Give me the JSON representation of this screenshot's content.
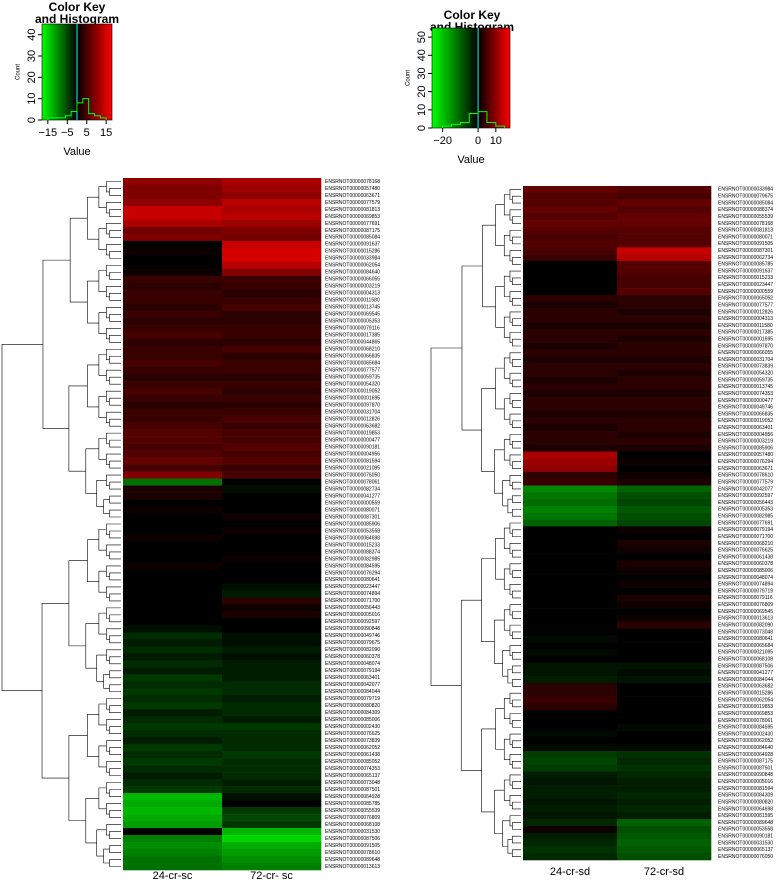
{
  "chart_data": [
    {
      "type": "heatmap",
      "key_title_lines": [
        "Color Key",
        "and Histogram"
      ],
      "key_xlabel": "Value",
      "key_ylabel": "Count",
      "key_xlim": [
        -18,
        18
      ],
      "key_xticks": [
        {
          "value": -15,
          "label": "−15"
        },
        {
          "value": -5,
          "label": "−5"
        },
        5,
        15
      ],
      "key_ylim": [
        0,
        45
      ],
      "key_yticks": [
        0,
        10,
        20,
        30,
        40
      ],
      "histogram": {
        "bins": [
          -15,
          -12,
          -9,
          -6,
          -3,
          0,
          3,
          6,
          9,
          12,
          15
        ],
        "counts": [
          1,
          1,
          1,
          2,
          4,
          8,
          10,
          3,
          2,
          1
        ],
        "color": "#00ff00"
      },
      "colors": {
        "low": "#00ff00",
        "mid": "#000000",
        "high": "#ff0000"
      },
      "columns": [
        "24-cr-sc",
        "72-cr- sc"
      ],
      "rows": [
        "ENSRNOT00000078168",
        "ENSRNOT00000057480",
        "ENSRNOT00000063671",
        "ENSRNOT00000077579",
        "ENSRNOT00000081813",
        "ENSRNOT00000069853",
        "ENSRNOT00000077691",
        "ENSRNOT00000087175",
        "ENSRNOT00000085084",
        "ENSRNOT00000091637",
        "ENSRNOT00000015286",
        "ENSRNOT00000033984",
        "ENSRNOT00000062054",
        "ENSRNOT00000084640",
        "ENSRNOT00000066055",
        "ENSRNOT00000003219",
        "ENSRNOT00000004313",
        "ENSRNOT00000011580",
        "ENSRNOT00000013745",
        "ENSRNOT00000069545",
        "ENSRNOT00000005353",
        "ENSRNOT00000079116",
        "ENSRNOT00000017385",
        "ENSRNOT00000044865",
        "ENSRNOT00000068210",
        "ENSRNOT00000066835",
        "ENSRNOT00000065684",
        "ENSRNOT00000077577",
        "ENSRNOT00000059735",
        "ENSRNOT00000054320",
        "ENSRNOT00000019052",
        "ENSRNOT00000001695",
        "ENSRNOT00000097870",
        "ENSRNOT00000031704",
        "ENSRNOT00000012826",
        "ENSRNOT00000063682",
        "ENSRNOT00000019853",
        "ENSRNOT00000000477",
        "ENSRNOT00000090181",
        "ENSRNOT00000004956",
        "ENSRNOT00000081594",
        "ENSRNOT00000021095",
        "ENSRNOT00000076050",
        "ENSRNOT00000078061",
        "ENSRNOT00000082734",
        "ENSRNOT00000041277",
        "ENSRNOT00000000559",
        "ENSRNOT00000080071",
        "ENSRNOT00000087301",
        "ENSRNOT00000085906",
        "ENSRNOT00000053558",
        "ENSRNOT00000064698",
        "ENSRNOT00000015233",
        "ENSRNOT00000088374",
        "ENSRNOT00000082985",
        "ENSRNOT00000084595",
        "ENSRNOT00000076294",
        "ENSRNOT00000080641",
        "ENSRNOT00000023447",
        "ENSRNOT00000074894",
        "ENSRNOT00000071700",
        "ENSRNOT00000056443",
        "ENSRNOT00000005016",
        "ENSRNOT00000092597",
        "ENSRNOT00000090848",
        "ENSRNOT00000049746",
        "ENSRNOT00000079675",
        "ENSRNOT00000082090",
        "ENSRNOT00000060378",
        "ENSRNOT00000048074",
        "ENSRNOT00000079194",
        "ENSRNOT00000063401",
        "ENSRNOT00000042077",
        "ENSRNOT00000084044",
        "ENSRNOT00000079719",
        "ENSRNOT00000080820",
        "ENSRNOT00000084309",
        "ENSRNOT00000085006",
        "ENSRNOT00000002430",
        "ENSRNOT00000076625",
        "ENSRNOT00000073839",
        "ENSRNOT00000062052",
        "ENSRNOT00000061438",
        "ENSRNOT00000085052",
        "ENSRNOT00000074353",
        "ENSRNOT00000065137",
        "ENSRNOT00000073048",
        "ENSRNOT00000087501",
        "ENSRNOT00000064928",
        "ENSRNOT00000085785",
        "ENSRNOT00000055539",
        "ENSRNOT00000076809",
        "ENSRNOT00000068108",
        "ENSRNOT00000031530",
        "ENSRNOT00000087506",
        "ENSRNOT00000091505",
        "ENSRNOT00000078610",
        "ENSRNOT00000089648",
        "ENSRNOT00000013613"
      ],
      "values": [
        [
          10,
          12
        ],
        [
          9,
          11
        ],
        [
          9,
          10
        ],
        [
          10,
          13
        ],
        [
          14,
          12
        ],
        [
          14,
          13
        ],
        [
          12,
          11
        ],
        [
          8,
          9
        ],
        [
          9,
          8
        ],
        [
          0,
          14
        ],
        [
          1,
          15
        ],
        [
          0,
          15
        ],
        [
          0,
          13
        ],
        [
          1,
          9
        ],
        [
          4,
          4
        ],
        [
          3,
          4
        ],
        [
          4,
          3
        ],
        [
          4,
          4
        ],
        [
          3,
          5
        ],
        [
          4,
          3
        ],
        [
          3,
          3
        ],
        [
          4,
          4
        ],
        [
          5,
          4
        ],
        [
          3,
          3
        ],
        [
          4,
          5
        ],
        [
          4,
          3
        ],
        [
          5,
          4
        ],
        [
          4,
          4
        ],
        [
          3,
          3
        ],
        [
          4,
          4
        ],
        [
          5,
          3
        ],
        [
          4,
          4
        ],
        [
          3,
          3
        ],
        [
          4,
          4
        ],
        [
          4,
          5
        ],
        [
          5,
          4
        ],
        [
          6,
          5
        ],
        [
          6,
          5
        ],
        [
          5,
          6
        ],
        [
          6,
          5
        ],
        [
          7,
          6
        ],
        [
          5,
          4
        ],
        [
          9,
          5
        ],
        [
          -8,
          0
        ],
        [
          2,
          -1
        ],
        [
          2,
          0
        ],
        [
          0,
          0
        ],
        [
          1,
          0
        ],
        [
          0,
          1
        ],
        [
          0,
          0
        ],
        [
          0,
          1
        ],
        [
          1,
          0
        ],
        [
          0,
          0
        ],
        [
          0,
          0
        ],
        [
          0,
          1
        ],
        [
          1,
          0
        ],
        [
          0,
          0
        ],
        [
          0,
          0
        ],
        [
          0,
          -1
        ],
        [
          0,
          -2
        ],
        [
          0,
          3
        ],
        [
          0,
          1
        ],
        [
          0,
          2
        ],
        [
          0,
          0
        ],
        [
          -1,
          0
        ],
        [
          -3,
          -1
        ],
        [
          -2,
          -1
        ],
        [
          -3,
          -2
        ],
        [
          -2,
          -1
        ],
        [
          -3,
          -2
        ],
        [
          -2,
          -2
        ],
        [
          -4,
          -2
        ],
        [
          -3,
          -3
        ],
        [
          -4,
          -3
        ],
        [
          -3,
          -2
        ],
        [
          -4,
          -3
        ],
        [
          -2,
          -3
        ],
        [
          -3,
          -2
        ],
        [
          -4,
          -4
        ],
        [
          -3,
          -3
        ],
        [
          -2,
          -3
        ],
        [
          -4,
          -3
        ],
        [
          -3,
          -4
        ],
        [
          -4,
          -3
        ],
        [
          -3,
          -3
        ],
        [
          -2,
          -3
        ],
        [
          -3,
          -2
        ],
        [
          -4,
          -3
        ],
        [
          -13,
          -1
        ],
        [
          -12,
          0
        ],
        [
          -13,
          -4
        ],
        [
          -12,
          -5
        ],
        [
          -11,
          -4
        ],
        [
          0,
          -13
        ],
        [
          -9,
          -15
        ],
        [
          -10,
          -12
        ],
        [
          -9,
          -11
        ],
        [
          -8,
          -10
        ],
        [
          -8,
          -9
        ]
      ]
    },
    {
      "type": "heatmap",
      "key_title_lines": [
        "Color Key",
        "and Histogram"
      ],
      "key_xlabel": "Value",
      "key_ylabel": "Count",
      "key_xlim": [
        -26,
        18
      ],
      "key_xticks": [
        {
          "value": -20,
          "label": "−20"
        },
        0,
        10
      ],
      "key_ylim": [
        0,
        55
      ],
      "key_yticks": [
        0,
        10,
        20,
        30,
        40,
        50
      ],
      "histogram": {
        "bins": [
          -20,
          -15,
          -10,
          -5,
          0,
          5,
          10,
          15
        ],
        "counts": [
          1,
          2,
          3,
          8,
          9,
          3,
          1
        ],
        "color": "#00ff00"
      },
      "colors": {
        "low": "#00ff00",
        "mid": "#000000",
        "high": "#ff0000"
      },
      "columns": [
        "24-cr-sd",
        "72-cr-sd"
      ],
      "rows": [
        "ENSRNOT00000033984",
        "ENSRNOT00000079675",
        "ENSRNOT00000085084",
        "ENSRNOT00000088374",
        "ENSRNOT00000055539",
        "ENSRNOT00000078168",
        "ENSRNOT00000081813",
        "ENSRNOT00000080071",
        "ENSRNOT00000091505",
        "ENSRNOT00000087301",
        "ENSRNOT00000062734",
        "ENSRNOT00000085785",
        "ENSRNOT00000091637",
        "ENSRNOT00000015233",
        "ENSRNOT00000023447",
        "ENSRNOT00000000559",
        "ENSRNOT00000065052",
        "ENSRNOT00000077577",
        "ENSRNOT00000012826",
        "ENSRNOT00000004313",
        "ENSRNOT00000011580",
        "ENSRNOT00000017385",
        "ENSRNOT00000001695",
        "ENSRNOT00000097870",
        "ENSRNOT00000066055",
        "ENSRNOT00000031704",
        "ENSRNOT00000073839",
        "ENSRNOT00000054320",
        "ENSRNOT00000059735",
        "ENSRNOT00000013745",
        "ENSRNOT00000074353",
        "ENSRNOT00000000477",
        "ENSRNOT00000049746",
        "ENSRNOT00000066835",
        "ENSRNOT00000019052",
        "ENSRNOT00000063401",
        "ENSRNOT00000004956",
        "ENSRNOT00000003219",
        "ENSRNOT00000085906",
        "ENSRNOT00000057480",
        "ENSRNOT00000076294",
        "ENSRNOT00000063671",
        "ENSRNOT00000078610",
        "ENSRNOT00000077579",
        "ENSRNOT00000042077",
        "ENSRNOT00000092597",
        "ENSRNOT00000056443",
        "ENSRNOT00000005353",
        "ENSRNOT00000082985",
        "ENSRNOT00000077691",
        "ENSRNOT00000079194",
        "ENSRNOT00000071700",
        "ENSRNOT00000068210",
        "ENSRNOT00000076625",
        "ENSRNOT00000061438",
        "ENSRNOT00000060378",
        "ENSRNOT00000085006",
        "ENSRNOT00000048074",
        "ENSRNOT00000074894",
        "ENSRNOT00000079719",
        "ENSRNOT00000079116",
        "ENSRNOT00000076809",
        "ENSRNOT00000069545",
        "ENSRNOT00000013613",
        "ENSRNOT00000082090",
        "ENSRNOT00000073048",
        "ENSRNOT00000080641",
        "ENSRNOT00000065684",
        "ENSRNOT00000021095",
        "ENSRNOT00000068108",
        "ENSRNOT00000087506",
        "ENSRNOT00000041277",
        "ENSRNOT00000084044",
        "ENSRNOT00000063682",
        "ENSRNOT00000015286",
        "ENSRNOT00000062054",
        "ENSRNOT00000019853",
        "ENSRNOT00000069853",
        "ENSRNOT00000078061",
        "ENSRNOT00000084595",
        "ENSRNOT00000002430",
        "ENSRNOT00000062052",
        "ENSRNOT00000084640",
        "ENSRNOT00000064928",
        "ENSRNOT00000087175",
        "ENSRNOT00000087501",
        "ENSRNOT00000090848",
        "ENSRNOT00000005016",
        "ENSRNOT00000081594",
        "ENSRNOT00000084309",
        "ENSRNOT00000080820",
        "ENSRNOT00000064698",
        "ENSRNOT00000081595",
        "ENSRNOT00000089648",
        "ENSRNOT00000053558",
        "ENSRNOT00000090181",
        "ENSRNOT00000031530",
        "ENSRNOT00000065137",
        "ENSRNOT00000076050"
      ],
      "values": [
        [
          7,
          6
        ],
        [
          6,
          5
        ],
        [
          6,
          7
        ],
        [
          7,
          6
        ],
        [
          6,
          7
        ],
        [
          7,
          7
        ],
        [
          6,
          6
        ],
        [
          5,
          6
        ],
        [
          6,
          6
        ],
        [
          5,
          14
        ],
        [
          4,
          13
        ],
        [
          0,
          6
        ],
        [
          0,
          6
        ],
        [
          0,
          5
        ],
        [
          0,
          5
        ],
        [
          0,
          6
        ],
        [
          3,
          3
        ],
        [
          2,
          3
        ],
        [
          3,
          2
        ],
        [
          3,
          3
        ],
        [
          2,
          2
        ],
        [
          3,
          3
        ],
        [
          3,
          2
        ],
        [
          2,
          3
        ],
        [
          3,
          3
        ],
        [
          2,
          2
        ],
        [
          3,
          3
        ],
        [
          3,
          2
        ],
        [
          2,
          3
        ],
        [
          3,
          3
        ],
        [
          2,
          2
        ],
        [
          3,
          3
        ],
        [
          3,
          3
        ],
        [
          2,
          2
        ],
        [
          3,
          3
        ],
        [
          2,
          3
        ],
        [
          3,
          2
        ],
        [
          3,
          3
        ],
        [
          2,
          2
        ],
        [
          12,
          0
        ],
        [
          11,
          1
        ],
        [
          10,
          0
        ],
        [
          3,
          1
        ],
        [
          4,
          2
        ],
        [
          -14,
          -10
        ],
        [
          -12,
          -8
        ],
        [
          -11,
          -7
        ],
        [
          -13,
          -9
        ],
        [
          -12,
          -8
        ],
        [
          -10,
          -7
        ],
        [
          0,
          1
        ],
        [
          0,
          0
        ],
        [
          0,
          2
        ],
        [
          0,
          1
        ],
        [
          0,
          0
        ],
        [
          0,
          2
        ],
        [
          0,
          1
        ],
        [
          0,
          0
        ],
        [
          0,
          1
        ],
        [
          0,
          0
        ],
        [
          0,
          2
        ],
        [
          0,
          1
        ],
        [
          0,
          0
        ],
        [
          0,
          1
        ],
        [
          0,
          3
        ],
        [
          0,
          0
        ],
        [
          -1,
          0
        ],
        [
          0,
          0
        ],
        [
          -1,
          0
        ],
        [
          0,
          0
        ],
        [
          -2,
          -2
        ],
        [
          -2,
          -1
        ],
        [
          -3,
          -2
        ],
        [
          3,
          0
        ],
        [
          3,
          0
        ],
        [
          4,
          0
        ],
        [
          3,
          0
        ],
        [
          0,
          0
        ],
        [
          0,
          0
        ],
        [
          0,
          -1
        ],
        [
          -1,
          0
        ],
        [
          0,
          0
        ],
        [
          -1,
          -1
        ],
        [
          -6,
          -5
        ],
        [
          -7,
          -4
        ],
        [
          -6,
          -5
        ],
        [
          -3,
          -4
        ],
        [
          -2,
          -3
        ],
        [
          -3,
          -3
        ],
        [
          -3,
          -4
        ],
        [
          -2,
          -3
        ],
        [
          -3,
          -4
        ],
        [
          -2,
          -3
        ],
        [
          -4,
          -10
        ],
        [
          1,
          -8
        ],
        [
          -3,
          -9
        ],
        [
          -4,
          -10
        ],
        [
          -5,
          -9
        ],
        [
          -4,
          -8
        ]
      ]
    }
  ]
}
